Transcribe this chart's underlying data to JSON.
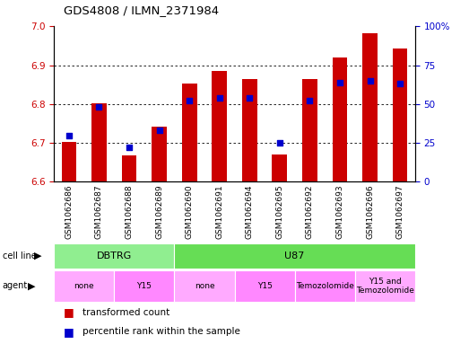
{
  "title": "GDS4808 / ILMN_2371984",
  "samples": [
    "GSM1062686",
    "GSM1062687",
    "GSM1062688",
    "GSM1062689",
    "GSM1062690",
    "GSM1062691",
    "GSM1062694",
    "GSM1062695",
    "GSM1062692",
    "GSM1062693",
    "GSM1062696",
    "GSM1062697"
  ],
  "transformed_count": [
    6.703,
    6.803,
    6.668,
    6.742,
    6.853,
    6.885,
    6.865,
    6.67,
    6.864,
    6.92,
    6.982,
    6.943
  ],
  "percentile_rank": [
    30,
    48,
    22,
    33,
    52,
    54,
    54,
    25,
    52,
    64,
    65,
    63
  ],
  "ylim_left": [
    6.6,
    7.0
  ],
  "ylim_right": [
    0,
    100
  ],
  "yticks_left": [
    6.6,
    6.7,
    6.8,
    6.9,
    7.0
  ],
  "yticks_right": [
    0,
    25,
    50,
    75,
    100
  ],
  "bar_color": "#cc0000",
  "dot_color": "#0000cc",
  "bar_bottom": 6.6,
  "cell_line_groups": [
    {
      "label": "DBTRG",
      "start": 0,
      "end": 3,
      "color": "#90ee90"
    },
    {
      "label": "U87",
      "start": 4,
      "end": 11,
      "color": "#66dd55"
    }
  ],
  "agent_groups": [
    {
      "label": "none",
      "start": 0,
      "end": 1,
      "color": "#ffaaff"
    },
    {
      "label": "Y15",
      "start": 2,
      "end": 3,
      "color": "#ff88ff"
    },
    {
      "label": "none",
      "start": 4,
      "end": 5,
      "color": "#ffaaff"
    },
    {
      "label": "Y15",
      "start": 6,
      "end": 7,
      "color": "#ff88ff"
    },
    {
      "label": "Temozolomide",
      "start": 8,
      "end": 9,
      "color": "#ff88ff"
    },
    {
      "label": "Y15 and\nTemozolomide",
      "start": 10,
      "end": 11,
      "color": "#ffaaff"
    }
  ],
  "legend_items": [
    {
      "label": "transformed count",
      "color": "#cc0000"
    },
    {
      "label": "percentile rank within the sample",
      "color": "#0000cc"
    }
  ],
  "grid_color": "#000000",
  "tick_color_left": "#cc0000",
  "tick_color_right": "#0000cc",
  "xticklabel_bg": "#d8d8d8",
  "border_color": "#000000"
}
